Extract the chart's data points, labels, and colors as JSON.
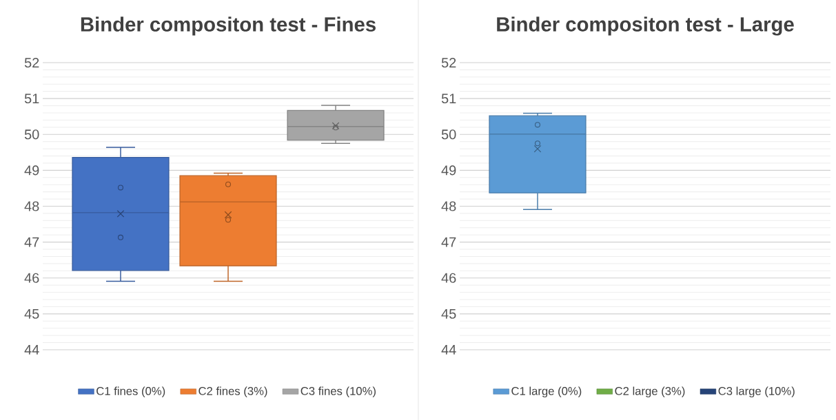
{
  "chart_data": [
    {
      "type": "box",
      "title": "Binder compositon test - Fines",
      "categories": [
        null
      ],
      "series": [
        {
          "name": "C1 fines (0%)",
          "color": "#4472c4",
          "boxes": [
            {
              "low": 45.91,
              "q1": 46.21,
              "median": 47.82,
              "q3": 49.36,
              "high": 49.64,
              "mean": 47.79,
              "outliers": [
                48.52,
                47.13
              ]
            }
          ]
        },
        {
          "name": "C2 fines (3%)",
          "color": "#ed7d31",
          "boxes": [
            {
              "low": 45.91,
              "q1": 46.34,
              "median": 48.12,
              "q3": 48.85,
              "high": 48.92,
              "mean": 47.76,
              "outliers": [
                48.61,
                47.62
              ]
            }
          ]
        },
        {
          "name": "C3 fines (10%)",
          "color": "#a5a5a5",
          "boxes": [
            {
              "low": 49.75,
              "q1": 49.84,
              "median": 50.22,
              "q3": 50.67,
              "high": 50.81,
              "mean": 50.24,
              "outliers": [
                50.19
              ]
            }
          ]
        }
      ],
      "ylim": [
        44,
        52
      ],
      "yticks": [
        44,
        45,
        46,
        47,
        48,
        49,
        50,
        51,
        52
      ],
      "grid": true,
      "legend": "bottom",
      "tick_labels": "y"
    },
    {
      "type": "box",
      "title": "Binder compositon test - Large",
      "categories": [
        null
      ],
      "series": [
        {
          "name": "C1 large (0%)",
          "color": "#5b9bd5",
          "boxes": [
            {
              "low": 47.91,
              "q1": 48.37,
              "median": 50.01,
              "q3": 50.52,
              "high": 50.59,
              "mean": 49.6,
              "outliers": [
                50.27,
                49.75
              ]
            }
          ]
        },
        {
          "name": "C2 large (3%)",
          "color": "#70ad47",
          "boxes": [
            null
          ]
        },
        {
          "name": "C3 large (10%)",
          "color": "#264478",
          "boxes": [
            null
          ]
        }
      ],
      "ylim": [
        44,
        52
      ],
      "yticks": [
        44,
        45,
        46,
        47,
        48,
        49,
        50,
        51,
        52
      ],
      "grid": true,
      "legend": "bottom",
      "tick_labels": "y"
    }
  ]
}
